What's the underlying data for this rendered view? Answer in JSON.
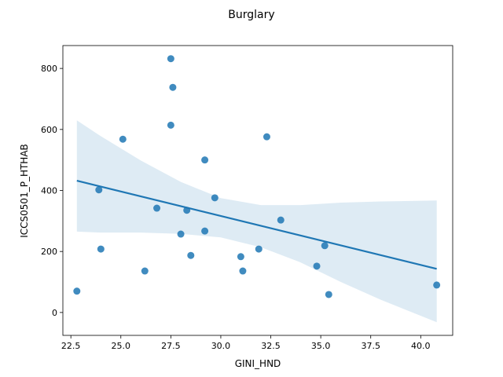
{
  "chart_data": {
    "type": "scatter",
    "title": "Burglary",
    "xlabel": "GINI_HND",
    "ylabel": "ICCS0501_P_HTHAB",
    "xlim": [
      22.1,
      41.6
    ],
    "ylim": [
      -75,
      875
    ],
    "xticks": [
      "22.5",
      "25.0",
      "27.5",
      "30.0",
      "32.5",
      "35.0",
      "37.5",
      "40.0"
    ],
    "xtick_values": [
      22.5,
      25.0,
      27.5,
      30.0,
      32.5,
      35.0,
      37.5,
      40.0
    ],
    "yticks": [
      "0",
      "200",
      "400",
      "600",
      "800"
    ],
    "ytick_values": [
      0,
      200,
      400,
      600,
      800
    ],
    "grid": false,
    "points": [
      {
        "x": 22.8,
        "y": 70
      },
      {
        "x": 23.9,
        "y": 402
      },
      {
        "x": 24.0,
        "y": 208
      },
      {
        "x": 25.1,
        "y": 568
      },
      {
        "x": 26.2,
        "y": 136
      },
      {
        "x": 26.8,
        "y": 342
      },
      {
        "x": 27.5,
        "y": 832
      },
      {
        "x": 27.5,
        "y": 614
      },
      {
        "x": 27.6,
        "y": 738
      },
      {
        "x": 28.0,
        "y": 257
      },
      {
        "x": 28.3,
        "y": 335
      },
      {
        "x": 28.5,
        "y": 187
      },
      {
        "x": 29.2,
        "y": 500
      },
      {
        "x": 29.2,
        "y": 267
      },
      {
        "x": 29.7,
        "y": 376
      },
      {
        "x": 31.0,
        "y": 183
      },
      {
        "x": 31.1,
        "y": 136
      },
      {
        "x": 31.9,
        "y": 208
      },
      {
        "x": 32.3,
        "y": 576
      },
      {
        "x": 33.0,
        "y": 303
      },
      {
        "x": 34.8,
        "y": 152
      },
      {
        "x": 35.2,
        "y": 219
      },
      {
        "x": 35.4,
        "y": 59
      },
      {
        "x": 40.8,
        "y": 90
      }
    ],
    "regression_line": {
      "x": [
        22.8,
        40.8
      ],
      "y": [
        432,
        143
      ]
    },
    "confidence_band": {
      "x": [
        22.8,
        24,
        26,
        28,
        30,
        32,
        34,
        36,
        38,
        40.8
      ],
      "upper": [
        630,
        578,
        498,
        428,
        375,
        352,
        352,
        360,
        364,
        367
      ],
      "lower": [
        265,
        262,
        262,
        258,
        246,
        214,
        164,
        100,
        42,
        -32
      ]
    },
    "colors": {
      "points": "#1f77b4",
      "line": "#1f77b4",
      "band": "#1f77b4",
      "axes": "#000000"
    }
  }
}
